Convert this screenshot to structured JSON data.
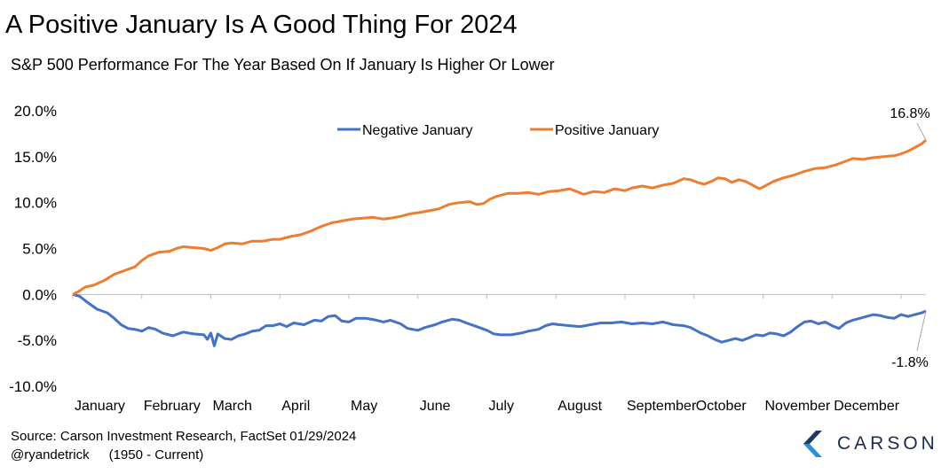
{
  "header": {
    "title": "A Positive January Is A Good Thing For 2024",
    "subtitle": "S&P 500 Performance For The Year Based On If January Is Higher Or Lower"
  },
  "footer": {
    "source": "Source: Carson Investment Research, FactSet 01/29/2024",
    "handle": "@ryandetrick",
    "range": "(1950 - Current)"
  },
  "logo": {
    "text": "CARSON",
    "mark_colors": [
      "#1f3b63",
      "#2f8fd0"
    ]
  },
  "colors": {
    "negative": "#4472c4",
    "positive": "#ed7d31"
  },
  "chart_data": {
    "type": "line",
    "x_unit": "month",
    "xlim": [
      0,
      12
    ],
    "ylim": [
      -10,
      20
    ],
    "yticks": [
      20,
      15,
      10,
      5,
      0,
      -5,
      -10
    ],
    "ytick_labels": [
      "20.0%",
      "15.0%",
      "10.0%",
      "5.0%",
      "0.0%",
      "-5.0%",
      "-10.0%"
    ],
    "categories": [
      "January",
      "February",
      "March",
      "April",
      "May",
      "June",
      "July",
      "August",
      "September",
      "October",
      "November",
      "December"
    ],
    "xtick_positions": [
      0,
      1,
      2,
      3,
      4,
      5,
      6,
      7,
      8,
      9,
      10,
      11
    ],
    "legend": {
      "placement": "top-center"
    },
    "grid": false,
    "series": [
      {
        "name": "Negative January",
        "color": "#4472c4",
        "end_label": "-1.8%",
        "points": [
          [
            0,
            0
          ],
          [
            0.1,
            -0.2
          ],
          [
            0.2,
            -0.8
          ],
          [
            0.35,
            -1.6
          ],
          [
            0.5,
            -2.0
          ],
          [
            0.6,
            -2.6
          ],
          [
            0.7,
            -3.3
          ],
          [
            0.8,
            -3.7
          ],
          [
            0.9,
            -3.8
          ],
          [
            1.0,
            -4.0
          ],
          [
            1.1,
            -3.6
          ],
          [
            1.2,
            -3.8
          ],
          [
            1.3,
            -4.2
          ],
          [
            1.45,
            -4.5
          ],
          [
            1.6,
            -4.1
          ],
          [
            1.75,
            -4.3
          ],
          [
            1.9,
            -4.4
          ],
          [
            1.95,
            -4.9
          ],
          [
            2.0,
            -4.2
          ],
          [
            2.05,
            -5.6
          ],
          [
            2.1,
            -4.3
          ],
          [
            2.2,
            -4.8
          ],
          [
            2.3,
            -4.9
          ],
          [
            2.4,
            -4.5
          ],
          [
            2.5,
            -4.3
          ],
          [
            2.6,
            -4.0
          ],
          [
            2.7,
            -3.9
          ],
          [
            2.8,
            -3.4
          ],
          [
            2.9,
            -3.4
          ],
          [
            3.0,
            -3.2
          ],
          [
            3.1,
            -3.5
          ],
          [
            3.2,
            -3.1
          ],
          [
            3.35,
            -3.3
          ],
          [
            3.5,
            -2.8
          ],
          [
            3.6,
            -2.9
          ],
          [
            3.7,
            -2.4
          ],
          [
            3.8,
            -2.3
          ],
          [
            3.9,
            -2.9
          ],
          [
            4.0,
            -3.0
          ],
          [
            4.1,
            -2.6
          ],
          [
            4.25,
            -2.6
          ],
          [
            4.4,
            -2.8
          ],
          [
            4.5,
            -3.0
          ],
          [
            4.6,
            -2.8
          ],
          [
            4.75,
            -3.2
          ],
          [
            4.85,
            -3.7
          ],
          [
            5.0,
            -3.9
          ],
          [
            5.1,
            -3.6
          ],
          [
            5.25,
            -3.3
          ],
          [
            5.35,
            -3.0
          ],
          [
            5.5,
            -2.7
          ],
          [
            5.6,
            -2.8
          ],
          [
            5.7,
            -3.1
          ],
          [
            5.85,
            -3.5
          ],
          [
            6.0,
            -3.9
          ],
          [
            6.1,
            -4.3
          ],
          [
            6.2,
            -4.4
          ],
          [
            6.35,
            -4.4
          ],
          [
            6.5,
            -4.2
          ],
          [
            6.6,
            -4.0
          ],
          [
            6.75,
            -3.8
          ],
          [
            6.85,
            -3.4
          ],
          [
            6.95,
            -3.2
          ],
          [
            7.05,
            -3.3
          ],
          [
            7.2,
            -3.4
          ],
          [
            7.35,
            -3.5
          ],
          [
            7.5,
            -3.3
          ],
          [
            7.65,
            -3.1
          ],
          [
            7.8,
            -3.1
          ],
          [
            7.95,
            -3.0
          ],
          [
            8.1,
            -3.2
          ],
          [
            8.25,
            -3.1
          ],
          [
            8.4,
            -3.2
          ],
          [
            8.55,
            -3.0
          ],
          [
            8.7,
            -3.3
          ],
          [
            8.85,
            -3.4
          ],
          [
            8.95,
            -3.6
          ],
          [
            9.1,
            -4.2
          ],
          [
            9.2,
            -4.5
          ],
          [
            9.3,
            -4.9
          ],
          [
            9.4,
            -5.2
          ],
          [
            9.5,
            -5.0
          ],
          [
            9.6,
            -4.8
          ],
          [
            9.7,
            -5.0
          ],
          [
            9.8,
            -4.7
          ],
          [
            9.9,
            -4.4
          ],
          [
            10.0,
            -4.5
          ],
          [
            10.1,
            -4.2
          ],
          [
            10.2,
            -4.3
          ],
          [
            10.3,
            -4.5
          ],
          [
            10.4,
            -4.1
          ],
          [
            10.5,
            -3.5
          ],
          [
            10.6,
            -3.0
          ],
          [
            10.7,
            -2.9
          ],
          [
            10.8,
            -3.2
          ],
          [
            10.9,
            -3.0
          ],
          [
            11.0,
            -3.4
          ],
          [
            11.1,
            -3.7
          ],
          [
            11.2,
            -3.1
          ],
          [
            11.3,
            -2.8
          ],
          [
            11.4,
            -2.6
          ],
          [
            11.5,
            -2.4
          ],
          [
            11.6,
            -2.2
          ],
          [
            11.7,
            -2.3
          ],
          [
            11.8,
            -2.5
          ],
          [
            11.9,
            -2.6
          ],
          [
            12.0,
            -2.2
          ],
          [
            12.1,
            -2.4
          ],
          [
            12.2,
            -2.2
          ],
          [
            12.3,
            -2.0
          ],
          [
            12.36,
            -1.8
          ]
        ]
      },
      {
        "name": "Positive January",
        "color": "#ed7d31",
        "end_label": "16.8%",
        "points": [
          [
            0,
            0
          ],
          [
            0.08,
            0.3
          ],
          [
            0.18,
            0.8
          ],
          [
            0.3,
            1.0
          ],
          [
            0.45,
            1.5
          ],
          [
            0.6,
            2.2
          ],
          [
            0.75,
            2.6
          ],
          [
            0.9,
            3.0
          ],
          [
            1.0,
            3.7
          ],
          [
            1.1,
            4.2
          ],
          [
            1.25,
            4.6
          ],
          [
            1.4,
            4.7
          ],
          [
            1.5,
            5.0
          ],
          [
            1.6,
            5.2
          ],
          [
            1.75,
            5.1
          ],
          [
            1.9,
            5.0
          ],
          [
            2.0,
            4.8
          ],
          [
            2.1,
            5.1
          ],
          [
            2.2,
            5.5
          ],
          [
            2.3,
            5.6
          ],
          [
            2.45,
            5.5
          ],
          [
            2.6,
            5.8
          ],
          [
            2.75,
            5.8
          ],
          [
            2.9,
            6.0
          ],
          [
            3.0,
            6.0
          ],
          [
            3.15,
            6.3
          ],
          [
            3.3,
            6.5
          ],
          [
            3.45,
            6.9
          ],
          [
            3.6,
            7.4
          ],
          [
            3.75,
            7.8
          ],
          [
            3.9,
            8.0
          ],
          [
            4.05,
            8.2
          ],
          [
            4.2,
            8.3
          ],
          [
            4.35,
            8.4
          ],
          [
            4.5,
            8.2
          ],
          [
            4.6,
            8.3
          ],
          [
            4.75,
            8.5
          ],
          [
            4.9,
            8.8
          ],
          [
            5.0,
            8.9
          ],
          [
            5.15,
            9.1
          ],
          [
            5.3,
            9.3
          ],
          [
            5.45,
            9.8
          ],
          [
            5.6,
            10.0
          ],
          [
            5.75,
            10.1
          ],
          [
            5.85,
            9.8
          ],
          [
            5.95,
            9.9
          ],
          [
            6.05,
            10.4
          ],
          [
            6.15,
            10.7
          ],
          [
            6.3,
            11.0
          ],
          [
            6.45,
            11.0
          ],
          [
            6.6,
            11.1
          ],
          [
            6.75,
            10.9
          ],
          [
            6.9,
            11.2
          ],
          [
            7.05,
            11.3
          ],
          [
            7.2,
            11.5
          ],
          [
            7.3,
            11.2
          ],
          [
            7.4,
            10.9
          ],
          [
            7.55,
            11.2
          ],
          [
            7.7,
            11.1
          ],
          [
            7.85,
            11.5
          ],
          [
            8.0,
            11.3
          ],
          [
            8.1,
            11.6
          ],
          [
            8.25,
            11.8
          ],
          [
            8.4,
            11.6
          ],
          [
            8.55,
            11.9
          ],
          [
            8.7,
            12.1
          ],
          [
            8.85,
            12.6
          ],
          [
            8.95,
            12.5
          ],
          [
            9.05,
            12.2
          ],
          [
            9.15,
            12.0
          ],
          [
            9.25,
            12.3
          ],
          [
            9.35,
            12.7
          ],
          [
            9.45,
            12.6
          ],
          [
            9.55,
            12.2
          ],
          [
            9.65,
            12.5
          ],
          [
            9.75,
            12.3
          ],
          [
            9.85,
            11.9
          ],
          [
            9.95,
            11.5
          ],
          [
            10.05,
            11.9
          ],
          [
            10.15,
            12.3
          ],
          [
            10.3,
            12.7
          ],
          [
            10.45,
            13.0
          ],
          [
            10.6,
            13.4
          ],
          [
            10.75,
            13.7
          ],
          [
            10.9,
            13.8
          ],
          [
            11.05,
            14.1
          ],
          [
            11.2,
            14.5
          ],
          [
            11.3,
            14.8
          ],
          [
            11.45,
            14.7
          ],
          [
            11.6,
            14.9
          ],
          [
            11.75,
            15.0
          ],
          [
            11.9,
            15.1
          ],
          [
            12.0,
            15.3
          ],
          [
            12.1,
            15.6
          ],
          [
            12.2,
            16.0
          ],
          [
            12.3,
            16.4
          ],
          [
            12.36,
            16.8
          ]
        ]
      }
    ]
  }
}
